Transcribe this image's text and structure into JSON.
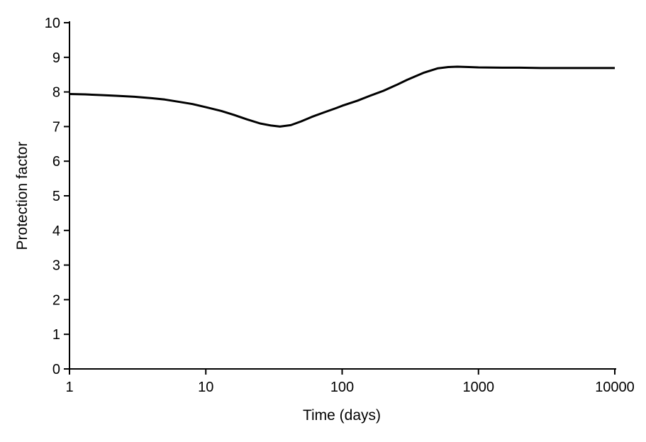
{
  "chart_data": {
    "type": "line",
    "title": "",
    "xlabel": "Time (days)",
    "ylabel": "Protection factor",
    "x_scale": "log",
    "y_scale": "linear",
    "xlim": [
      1,
      10000
    ],
    "ylim": [
      0,
      10
    ],
    "grid": false,
    "legend": "none",
    "line_color": "#000000",
    "background_color": "#ffffff",
    "x_ticks": [
      1,
      10,
      100,
      1000,
      10000
    ],
    "x_tick_labels": [
      "1",
      "10",
      "100",
      "1000",
      "10000"
    ],
    "y_ticks": [
      0,
      1,
      2,
      3,
      4,
      5,
      6,
      7,
      8,
      9,
      10
    ],
    "y_tick_labels": [
      "0",
      "1",
      "2",
      "3",
      "4",
      "5",
      "6",
      "7",
      "8",
      "9",
      "10"
    ],
    "series": [
      {
        "name": "Protection factor",
        "x": [
          1,
          1.3,
          1.7,
          2.2,
          3,
          4,
          5,
          6.5,
          8,
          10,
          13,
          16,
          20,
          25,
          30,
          35,
          42,
          50,
          60,
          75,
          90,
          100,
          130,
          160,
          200,
          250,
          300,
          400,
          500,
          600,
          700,
          850,
          1000,
          1500,
          2000,
          3000,
          5000,
          10000
        ],
        "y": [
          7.94,
          7.93,
          7.91,
          7.89,
          7.86,
          7.82,
          7.78,
          7.71,
          7.65,
          7.56,
          7.45,
          7.34,
          7.21,
          7.09,
          7.03,
          7.0,
          7.04,
          7.15,
          7.28,
          7.42,
          7.53,
          7.6,
          7.75,
          7.89,
          8.03,
          8.2,
          8.35,
          8.56,
          8.68,
          8.72,
          8.73,
          8.72,
          8.71,
          8.7,
          8.7,
          8.69,
          8.69,
          8.69
        ]
      }
    ],
    "annotations": []
  }
}
